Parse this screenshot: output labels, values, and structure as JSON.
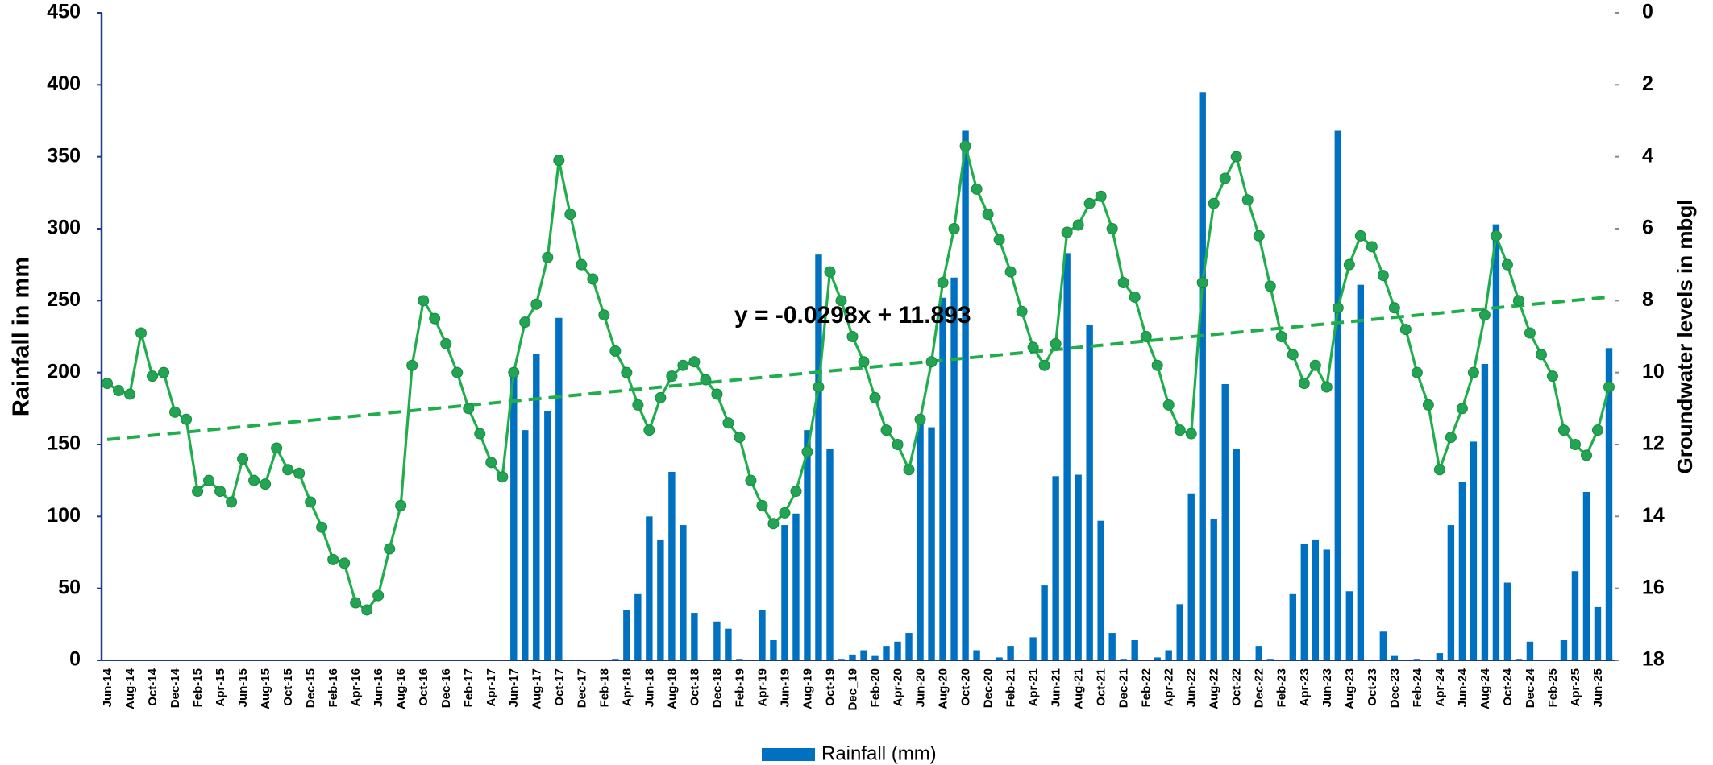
{
  "chart_data": {
    "type": "combo",
    "y_label": "Rainfall in mm",
    "y2_label": "Groundwater levels in mbgl",
    "categories": [
      "Jun-14",
      null,
      "Aug-14",
      null,
      "Oct-14",
      null,
      "Dec-14",
      null,
      "Feb-15",
      null,
      "Apr-15",
      null,
      "Jun-15",
      null,
      "Aug-15",
      null,
      "Oct-15",
      null,
      "Dec-15",
      null,
      "Feb-16",
      null,
      "Apr-16",
      null,
      "Jun-16",
      null,
      "Aug-16",
      null,
      "Oct-16",
      null,
      "Dec-16",
      null,
      "Feb-17",
      null,
      "Apr-17",
      null,
      "Jun-17",
      null,
      "Aug-17",
      null,
      "Oct-17",
      null,
      "Dec-17",
      null,
      "Feb-18",
      null,
      "Apr-18",
      null,
      "Jun-18",
      null,
      "Aug-18",
      null,
      "Oct-18",
      null,
      "Dec-18",
      null,
      "Feb-19",
      null,
      "Apr-19",
      null,
      "Jun-19",
      null,
      "Aug-19",
      null,
      "Oct-19",
      null,
      "Dec_19",
      null,
      "Feb-20",
      null,
      "Apr-20",
      null,
      "Jun-20",
      null,
      "Aug-20",
      null,
      "Oct-20",
      null,
      "Dec-20",
      null,
      "Feb-21",
      null,
      "Apr-21",
      null,
      "Jun-21",
      null,
      "Aug-21",
      null,
      "Oct-21",
      null,
      "Dec-21",
      null,
      "Feb-22",
      null,
      "Apr-22",
      null,
      "Jun-22",
      null,
      "Aug-22",
      null,
      "Oct-22",
      null,
      "Dec-22",
      null,
      "Feb-23",
      null,
      "Apr-23",
      null,
      "Jun-23",
      null,
      "Aug-23",
      null,
      "Oct-23",
      null,
      "Dec-23",
      null,
      "Feb-24",
      null,
      "Apr-24",
      null,
      "Jun-24",
      null,
      "Aug-24",
      null,
      "Oct-24",
      null,
      "Dec-24",
      null,
      "Feb-25",
      null,
      "Apr-25",
      null,
      "Jun-25",
      null
    ],
    "series": [
      {
        "name": "Rainfall (mm)",
        "type": "bar",
        "color": "#0070c0",
        "values": [
          0,
          0,
          0,
          0,
          0,
          0,
          0,
          0,
          0,
          0,
          0,
          0,
          0,
          0,
          0,
          0,
          0,
          0,
          0,
          0,
          0,
          0,
          0,
          0,
          0,
          0,
          0,
          0,
          0,
          0,
          0,
          0,
          0,
          0,
          0,
          0,
          200,
          160,
          213,
          173,
          238,
          0,
          0,
          0,
          0,
          1,
          35,
          46,
          100,
          84,
          131,
          94,
          33,
          0,
          27,
          22,
          1,
          0,
          35,
          14,
          94,
          102,
          160,
          282,
          147,
          1,
          4,
          7,
          3,
          10,
          13,
          19,
          170,
          162,
          252,
          266,
          368,
          7,
          0,
          2,
          10,
          0,
          16,
          52,
          128,
          283,
          129,
          233,
          97,
          19,
          1,
          14,
          0,
          2,
          7,
          39,
          116,
          395,
          98,
          192,
          147,
          0,
          10,
          1,
          0,
          46,
          81,
          84,
          77,
          368,
          48,
          261,
          0,
          20,
          3,
          0,
          1,
          0,
          5,
          94,
          124,
          152,
          206,
          303,
          54,
          1,
          13,
          0,
          0,
          14,
          62,
          117,
          37,
          217
        ]
      },
      {
        "type": "line",
        "axis": "y2",
        "color": "#1fae4b",
        "marker_color": "#23a455",
        "values": [
          10.3,
          10.5,
          10.6,
          8.9,
          10.1,
          10.0,
          11.1,
          11.3,
          13.3,
          13.0,
          13.3,
          13.6,
          12.4,
          13.0,
          13.1,
          12.1,
          12.7,
          12.8,
          13.6,
          14.3,
          15.2,
          15.3,
          16.4,
          16.6,
          16.2,
          14.9,
          13.7,
          9.8,
          8.0,
          8.5,
          9.2,
          10.0,
          11.0,
          11.7,
          12.5,
          12.9,
          10.0,
          8.6,
          8.1,
          6.8,
          4.1,
          5.6,
          7.0,
          7.4,
          8.4,
          9.4,
          10.0,
          10.9,
          11.6,
          10.7,
          10.1,
          9.8,
          9.7,
          10.2,
          10.6,
          11.4,
          11.8,
          13.0,
          13.7,
          14.2,
          13.9,
          13.3,
          12.2,
          10.4,
          7.2,
          8.0,
          9.0,
          9.7,
          10.7,
          11.6,
          12.0,
          12.7,
          11.3,
          9.7,
          7.5,
          6.0,
          3.7,
          4.9,
          5.6,
          6.3,
          7.2,
          8.3,
          9.3,
          9.8,
          9.2,
          6.1,
          5.9,
          5.3,
          5.1,
          6.0,
          7.5,
          7.9,
          9.0,
          9.8,
          10.9,
          11.6,
          11.7,
          7.5,
          5.3,
          4.6,
          4.0,
          5.2,
          6.2,
          7.6,
          9.0,
          9.5,
          10.3,
          9.8,
          10.4,
          8.2,
          7.0,
          6.2,
          6.5,
          7.3,
          8.2,
          8.8,
          10.0,
          10.9,
          12.7,
          11.8,
          11.0,
          10.0,
          8.4,
          6.2,
          7.0,
          8.0,
          8.9,
          9.5,
          10.1,
          11.6,
          12.0,
          12.3,
          11.6,
          10.4
        ]
      }
    ],
    "trendline": {
      "axis": "y2",
      "slope": -0.0298,
      "intercept": 11.893,
      "label": "y = -0.0298x + 11.893",
      "color": "#1fae4b"
    },
    "ylim": [
      0,
      450
    ],
    "yticks": [
      0,
      50,
      100,
      150,
      200,
      250,
      300,
      350,
      400,
      450
    ],
    "y2lim": [
      18,
      0
    ],
    "y2ticks": [
      0,
      2,
      4,
      6,
      8,
      10,
      12,
      14,
      16,
      18
    ],
    "grid": false,
    "legend": "bottom"
  }
}
